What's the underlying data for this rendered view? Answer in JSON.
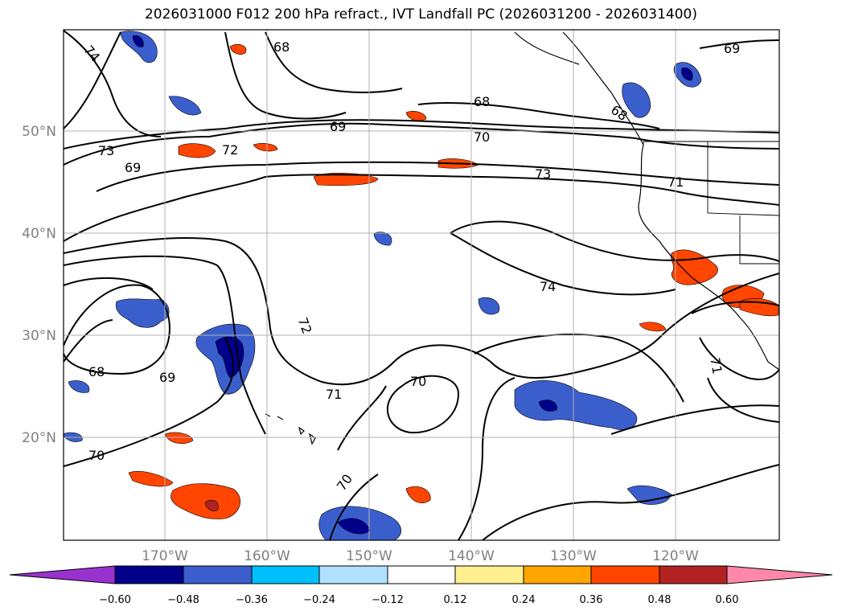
{
  "title": "2026031000 F012 200 hPa refract., IVT Landfall PC (2026031200 - 2026031400)",
  "map": {
    "longitudes": [
      "170°W",
      "160°W",
      "150°W",
      "140°W",
      "130°W",
      "120°W"
    ],
    "latitudes": [
      "50°N",
      "40°N",
      "30°N",
      "20°N"
    ],
    "contour_labels": [
      "74",
      "68",
      "69",
      "73",
      "72",
      "69",
      "68",
      "70",
      "73",
      "71",
      "68",
      "69",
      "72",
      "74",
      "70",
      "71",
      "70",
      "70",
      "69",
      "71",
      "68"
    ]
  },
  "colorbar": {
    "levels": [
      "−0.60",
      "−0.48",
      "−0.36",
      "−0.24",
      "−0.12",
      "0.12",
      "0.24",
      "0.36",
      "0.48",
      "0.60"
    ],
    "colors": [
      "#9932cc",
      "#00008b",
      "#3a5fcd",
      "#00bfff",
      "#b0e2ff",
      "#ffffff",
      "#fff08f",
      "#ffa500",
      "#ff4500",
      "#b22222",
      "#ff88aa"
    ]
  }
}
